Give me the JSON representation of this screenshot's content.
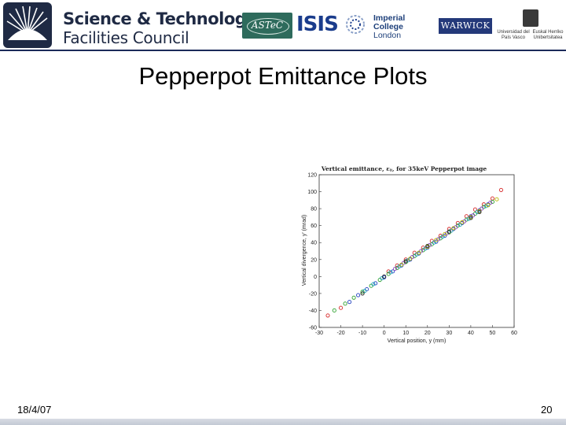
{
  "header": {
    "stfc_name_line1": "Science & Technology",
    "stfc_name_line2": "Facilities Council",
    "astec_label": "ASTeC",
    "isis_label": "ISIS",
    "imperial_line1": "Imperial College",
    "imperial_line2": "London",
    "warwick_label": "WARWICK",
    "upv_left": "Universidad del País Vasco",
    "upv_right": "Euskal Herriko Unibertsitatea",
    "rule_color": "#1b2a5a"
  },
  "slide": {
    "title": "Pepperpot Emittance Plots",
    "date": "18/4/07",
    "page_number": "20"
  },
  "chart_data": {
    "type": "scatter",
    "title": "Vertical emittance, εᵧ, for 35keV Pepperpot image",
    "xlabel": "Vertical position, y (mm)",
    "ylabel": "Vertical divergence, y' (mrad)",
    "xlim": [
      -30,
      60
    ],
    "ylim": [
      -60,
      120
    ],
    "xticks": [
      "-30",
      "-20",
      "-10",
      "0",
      "10",
      "20",
      "30",
      "40",
      "50",
      "60"
    ],
    "yticks": [
      "120",
      "100",
      "80",
      "60",
      "40",
      "20",
      "0",
      "-20",
      "-40",
      "-60"
    ],
    "grid": false,
    "marker": "circle-open",
    "series": [
      {
        "color": "#d62728",
        "points": [
          [
            -26,
            -46
          ],
          [
            -20,
            -37
          ],
          [
            54,
            102
          ],
          [
            50,
            92
          ],
          [
            46,
            85
          ],
          [
            42,
            79
          ],
          [
            38,
            71
          ],
          [
            34,
            63
          ],
          [
            30,
            56
          ],
          [
            26,
            48
          ],
          [
            22,
            42
          ],
          [
            18,
            34
          ],
          [
            14,
            28
          ],
          [
            10,
            20
          ],
          [
            6,
            13
          ],
          [
            2,
            6
          ]
        ]
      },
      {
        "color": "#2ca02c",
        "points": [
          [
            -23,
            -40
          ],
          [
            -18,
            -32
          ],
          [
            -14,
            -25
          ],
          [
            -10,
            -18
          ],
          [
            -6,
            -11
          ],
          [
            -2,
            -4
          ],
          [
            2,
            3
          ],
          [
            6,
            10
          ],
          [
            10,
            17
          ],
          [
            14,
            24
          ],
          [
            18,
            31
          ],
          [
            22,
            38
          ],
          [
            26,
            45
          ],
          [
            30,
            52
          ],
          [
            34,
            60
          ],
          [
            38,
            67
          ],
          [
            42,
            74
          ],
          [
            46,
            82
          ],
          [
            50,
            88
          ]
        ]
      },
      {
        "color": "#1f3fbf",
        "points": [
          [
            -16,
            -30
          ],
          [
            -12,
            -22
          ],
          [
            -8,
            -15
          ],
          [
            -4,
            -8
          ],
          [
            0,
            -1
          ],
          [
            4,
            6
          ],
          [
            8,
            13
          ],
          [
            12,
            20
          ],
          [
            16,
            27
          ],
          [
            20,
            34
          ],
          [
            24,
            41
          ],
          [
            28,
            48
          ],
          [
            32,
            56
          ],
          [
            36,
            63
          ],
          [
            40,
            71
          ],
          [
            44,
            78
          ],
          [
            48,
            85
          ]
        ]
      },
      {
        "color": "#17a2b8",
        "points": [
          [
            -9,
            -17
          ],
          [
            -5,
            -9
          ],
          [
            -1,
            -2
          ],
          [
            3,
            5
          ],
          [
            7,
            12
          ],
          [
            11,
            19
          ],
          [
            15,
            26
          ],
          [
            19,
            33
          ],
          [
            23,
            40
          ],
          [
            27,
            47
          ],
          [
            31,
            54
          ],
          [
            35,
            61
          ],
          [
            39,
            68
          ],
          [
            43,
            76
          ],
          [
            47,
            83
          ]
        ]
      },
      {
        "color": "#8c3fbf",
        "points": [
          [
            5,
            9
          ],
          [
            9,
            16
          ],
          [
            13,
            23
          ],
          [
            17,
            30
          ],
          [
            21,
            37
          ],
          [
            25,
            44
          ],
          [
            29,
            51
          ],
          [
            33,
            58
          ],
          [
            37,
            65
          ],
          [
            41,
            72
          ],
          [
            45,
            80
          ],
          [
            49,
            87
          ]
        ]
      },
      {
        "color": "#b5b500",
        "points": [
          [
            8,
            14
          ],
          [
            12,
            21
          ],
          [
            16,
            28
          ],
          [
            20,
            35
          ],
          [
            24,
            43
          ],
          [
            28,
            50
          ],
          [
            32,
            57
          ],
          [
            36,
            64
          ],
          [
            40,
            70
          ],
          [
            44,
            77
          ],
          [
            48,
            84
          ],
          [
            52,
            91
          ]
        ]
      },
      {
        "color": "#222222",
        "points": [
          [
            -10,
            -20
          ],
          [
            0,
            0
          ],
          [
            10,
            18
          ],
          [
            20,
            36
          ],
          [
            30,
            53
          ],
          [
            40,
            69
          ],
          [
            44,
            76
          ]
        ]
      }
    ]
  }
}
